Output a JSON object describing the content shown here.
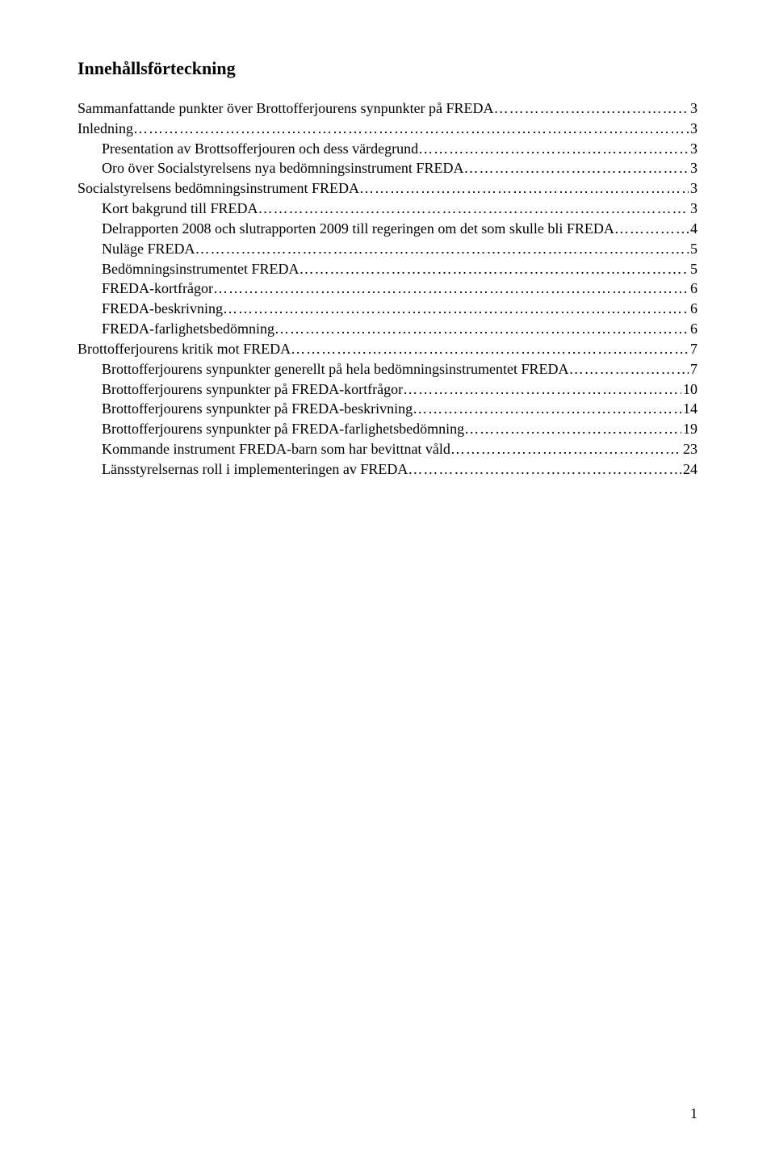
{
  "title": "Innehållsförteckning",
  "toc": [
    {
      "label": "Sammanfattande punkter över Brottofferjourens synpunkter på FREDA",
      "page": "3",
      "indent": 0
    },
    {
      "label": "Inledning",
      "page": "3",
      "indent": 0
    },
    {
      "label": "Presentation av Brottsofferjouren och dess värdegrund",
      "page": "3",
      "indent": 1
    },
    {
      "label": "Oro över Socialstyrelsens nya bedömningsinstrument FREDA",
      "page": "3",
      "indent": 1
    },
    {
      "label": "Socialstyrelsens bedömningsinstrument FREDA",
      "page": "3",
      "indent": 0
    },
    {
      "label": "Kort bakgrund till FREDA",
      "page": "3",
      "indent": 1
    },
    {
      "label": "Delrapporten 2008 och slutrapporten 2009 till regeringen om det som skulle bli FREDA",
      "page": "4",
      "indent": 1
    },
    {
      "label": "Nuläge FREDA",
      "page": "5",
      "indent": 1
    },
    {
      "label": "Bedömningsinstrumentet FREDA",
      "page": "5",
      "indent": 1
    },
    {
      "label": "FREDA-kortfrågor",
      "page": "6",
      "indent": 1
    },
    {
      "label": "FREDA-beskrivning",
      "page": "6",
      "indent": 1
    },
    {
      "label": "FREDA-farlighetsbedömning",
      "page": "6",
      "indent": 1
    },
    {
      "label": "Brottofferjourens kritik mot FREDA",
      "page": "7",
      "indent": 0
    },
    {
      "label": "Brottofferjourens synpunkter generellt på hela bedömningsinstrumentet FREDA",
      "page": "7",
      "indent": 1
    },
    {
      "label": "Brottofferjourens synpunkter på FREDA-kortfrågor",
      "page": "10",
      "indent": 1
    },
    {
      "label": "Brottofferjourens synpunkter på FREDA-beskrivning",
      "page": "14",
      "indent": 1
    },
    {
      "label": "Brottofferjourens synpunkter på FREDA-farlighetsbedömning",
      "page": "19",
      "indent": 1
    },
    {
      "label": "Kommande instrument FREDA-barn som har bevittnat våld",
      "page": "23",
      "indent": 1
    },
    {
      "label": "Länsstyrelsernas roll i implementeringen av FREDA",
      "page": "24",
      "indent": 1
    }
  ],
  "dots_fill": "……………………………………………………………………………………………………………………………………………………………………………………",
  "page_number": "1"
}
